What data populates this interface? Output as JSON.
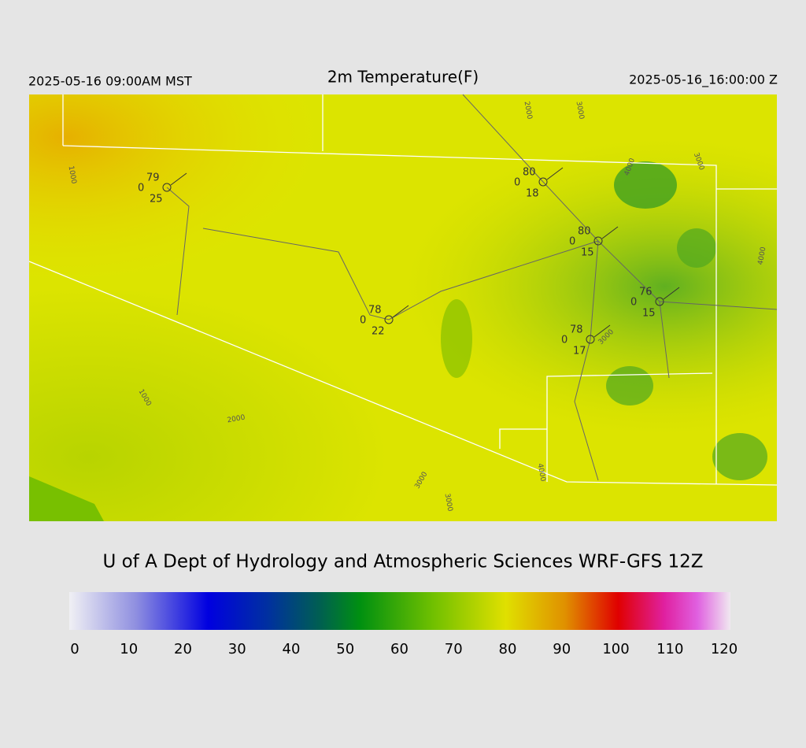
{
  "header": {
    "left": "2025-05-16 09:00AM MST",
    "title": "2m Temperature(F)",
    "right": "2025-05-16_16:00:00 Z"
  },
  "stations": [
    {
      "temp": 79,
      "left": 0,
      "dewpoint": 25
    },
    {
      "temp": 80,
      "left": 0,
      "dewpoint": 18
    },
    {
      "temp": 80,
      "left": 0,
      "dewpoint": 15
    },
    {
      "temp": 76,
      "left": 0,
      "dewpoint": 15
    },
    {
      "temp": 78,
      "left": 0,
      "dewpoint": 22
    },
    {
      "temp": 78,
      "left": 0,
      "dewpoint": 17
    }
  ],
  "contour_labels": [
    "1000",
    "1000",
    "2000",
    "2000",
    "3000",
    "3000",
    "3000",
    "3000",
    "4000",
    "4000",
    "4000",
    "3000"
  ],
  "footer": "U of A Dept of Hydrology and Atmospheric Sciences WRF-GFS 12Z",
  "colorbar": {
    "ticks": [
      0,
      10,
      20,
      30,
      40,
      50,
      60,
      70,
      80,
      90,
      100,
      110,
      120
    ]
  }
}
